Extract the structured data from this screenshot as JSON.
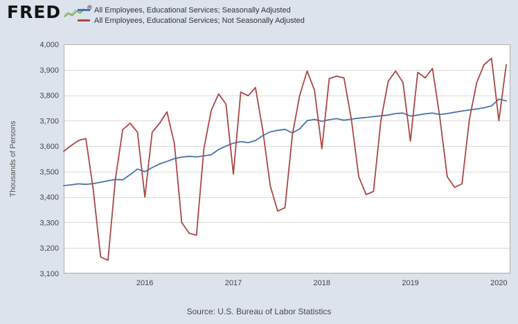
{
  "header": {
    "logo_text": "FRED",
    "registered_mark": "®"
  },
  "footer": {
    "source": "Source: U.S. Bureau of Labor Statistics"
  },
  "chart_data": {
    "type": "line",
    "title": "",
    "ylabel": "Thousands of Persons",
    "xlabel": "",
    "grid": "horizontal",
    "legend_position": "top-left",
    "plot_background": "#ffffff",
    "page_background": "#dce3ed",
    "grid_color": "#dadada",
    "border_color": "#b0b0b0",
    "ylim": [
      3100,
      4000
    ],
    "x_min": 2015.0833,
    "x_max": 2020.13,
    "x_start": 2015.0833,
    "x_step": 0.0833333,
    "x_unit": "monthly, Feb 2015 - Feb 2020",
    "y_tick_values": [
      3100,
      3200,
      3300,
      3400,
      3500,
      3600,
      3700,
      3800,
      3900,
      4000
    ],
    "y_tick_labels": [
      "3,100",
      "3,200",
      "3,300",
      "3,400",
      "3,500",
      "3,600",
      "3,700",
      "3,800",
      "3,900",
      "4,000"
    ],
    "x_tick_values": [
      2016,
      2017,
      2018,
      2019,
      2020
    ],
    "x_tick_labels": [
      "2016",
      "2017",
      "2018",
      "2019",
      "2020"
    ],
    "series": [
      {
        "name": "All Employees, Educational Services; Seasonally Adjusted",
        "color": "#4572a7",
        "values": [
          3445,
          3448,
          3452,
          3450,
          3453,
          3458,
          3464,
          3469,
          3468,
          3488,
          3510,
          3500,
          3516,
          3530,
          3540,
          3551,
          3557,
          3560,
          3558,
          3562,
          3566,
          3587,
          3600,
          3612,
          3618,
          3614,
          3622,
          3642,
          3656,
          3662,
          3666,
          3652,
          3668,
          3700,
          3705,
          3698,
          3704,
          3708,
          3702,
          3706,
          3710,
          3713,
          3716,
          3719,
          3722,
          3728,
          3730,
          3718,
          3722,
          3727,
          3730,
          3724,
          3728,
          3733,
          3738,
          3742,
          3746,
          3751,
          3758,
          3785,
          3778
        ]
      },
      {
        "name": "All Employees, Educational Services; Not Seasonally Adjusted",
        "color": "#aa4643",
        "values": [
          3580,
          3602,
          3622,
          3630,
          3430,
          3165,
          3152,
          3470,
          3665,
          3690,
          3655,
          3400,
          3655,
          3690,
          3735,
          3610,
          3300,
          3258,
          3250,
          3590,
          3740,
          3805,
          3765,
          3490,
          3812,
          3798,
          3830,
          3660,
          3445,
          3345,
          3358,
          3645,
          3800,
          3895,
          3820,
          3590,
          3865,
          3875,
          3868,
          3705,
          3480,
          3410,
          3422,
          3700,
          3855,
          3895,
          3850,
          3620,
          3890,
          3868,
          3905,
          3712,
          3480,
          3438,
          3452,
          3705,
          3850,
          3920,
          3945,
          3700,
          3920
        ]
      }
    ]
  }
}
